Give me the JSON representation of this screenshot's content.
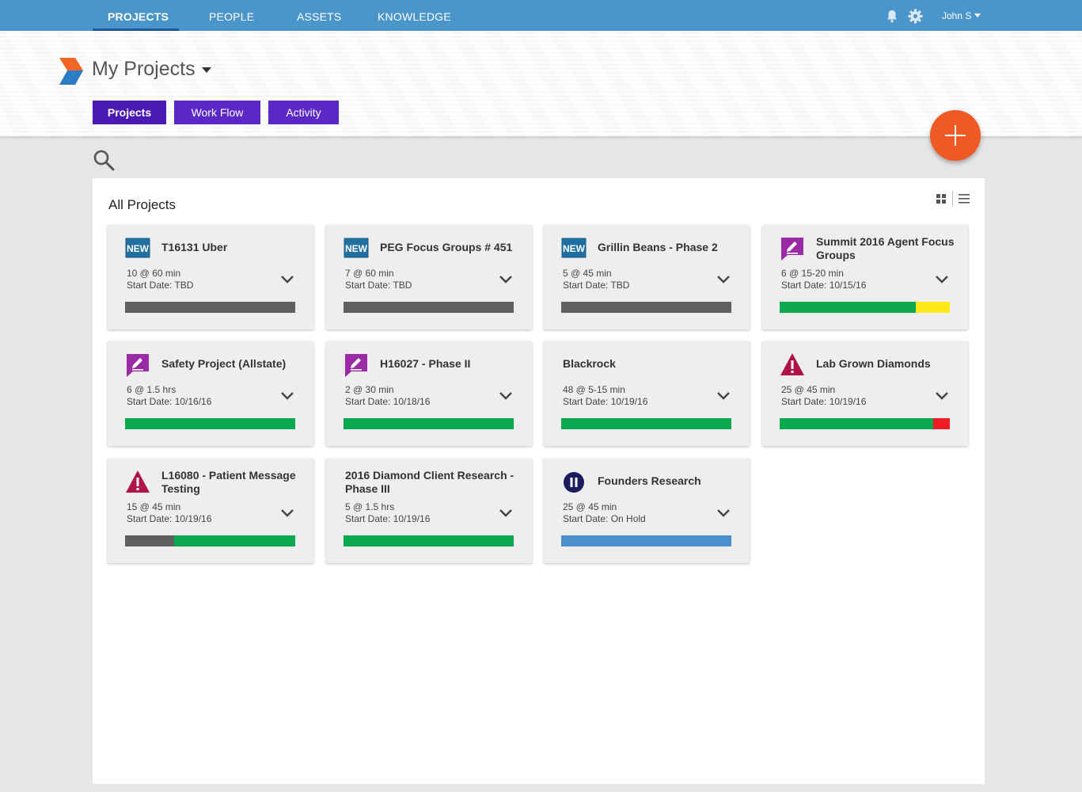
{
  "nav": {
    "items": [
      "PROJECTS",
      "PEOPLE",
      "ASSETS",
      "KNOWLEDGE"
    ],
    "user": "John S"
  },
  "header": {
    "title": "My Projects",
    "tabs": [
      "Projects",
      "Work Flow",
      "Activity"
    ]
  },
  "panel": {
    "title": "All Projects"
  },
  "colors": {
    "nav": "#4a95c9",
    "tab": "#5b27c7",
    "fab": "#ef5a24",
    "bar_gray": "#5f5f5f",
    "bar_green": "#0aa84f",
    "bar_yellow": "#ffe91a",
    "bar_red": "#ee1c25",
    "bar_blue": "#4a8fce"
  },
  "projects": [
    {
      "icon": "new-badge-icon",
      "title": "T16131 Uber",
      "meta1": "10 @ 60 min",
      "meta2": "Start Date: TBD",
      "progress": [
        {
          "color": "gray",
          "fraction": 1.0
        }
      ]
    },
    {
      "icon": "new-badge-icon",
      "title": "PEG Focus Groups # 451",
      "meta1": "7 @ 60 min",
      "meta2": "Start Date: TBD",
      "progress": [
        {
          "color": "gray",
          "fraction": 1.0
        }
      ]
    },
    {
      "icon": "new-badge-icon",
      "title": "Grillin Beans - Phase 2",
      "meta1": "5 @ 45 min",
      "meta2": "Start Date: TBD",
      "progress": [
        {
          "color": "gray",
          "fraction": 1.0
        }
      ]
    },
    {
      "icon": "edit-chat-icon",
      "title": "Summit 2016 Agent Focus Groups",
      "meta1": "6 @ 15-20 min",
      "meta2": "Start Date: 10/15/16",
      "progress": [
        {
          "color": "green",
          "fraction": 0.8
        },
        {
          "color": "yellow",
          "fraction": 0.2
        }
      ]
    },
    {
      "icon": "edit-chat-icon",
      "title": "Safety Project (Allstate)",
      "meta1": "6 @ 1.5 hrs",
      "meta2": "Start Date: 10/16/16",
      "progress": [
        {
          "color": "green",
          "fraction": 1.0
        }
      ]
    },
    {
      "icon": "edit-chat-icon",
      "title": "H16027 - Phase II",
      "meta1": "2 @ 30 min",
      "meta2": "Start Date: 10/18/16",
      "progress": [
        {
          "color": "green",
          "fraction": 1.0
        }
      ]
    },
    {
      "icon": "",
      "title": "Blackrock",
      "meta1": "48 @ 5-15 min",
      "meta2": "Start Date: 10/19/16",
      "progress": [
        {
          "color": "green",
          "fraction": 1.0
        }
      ]
    },
    {
      "icon": "warning-icon",
      "title": "Lab Grown Diamonds",
      "meta1": "25 @ 45 min",
      "meta2": "Start Date: 10/19/16",
      "progress": [
        {
          "color": "green",
          "fraction": 0.9
        },
        {
          "color": "red",
          "fraction": 0.1
        }
      ]
    },
    {
      "icon": "warning-icon",
      "title": "L16080 - Patient Message Testing",
      "meta1": "15 @ 45 min",
      "meta2": "Start Date: 10/19/16",
      "progress": [
        {
          "color": "gray",
          "fraction": 0.29
        },
        {
          "color": "green",
          "fraction": 0.71
        }
      ]
    },
    {
      "icon": "",
      "title": "2016 Diamond Client Research - Phase III",
      "meta1": "5 @ 1.5 hrs",
      "meta2": "Start Date: 10/19/16",
      "progress": [
        {
          "color": "green",
          "fraction": 1.0
        }
      ]
    },
    {
      "icon": "pause-icon",
      "title": "Founders Research",
      "meta1": "25 @ 45 min",
      "meta2": "Start Date: On Hold",
      "progress": [
        {
          "color": "blue",
          "fraction": 1.0
        }
      ]
    }
  ]
}
